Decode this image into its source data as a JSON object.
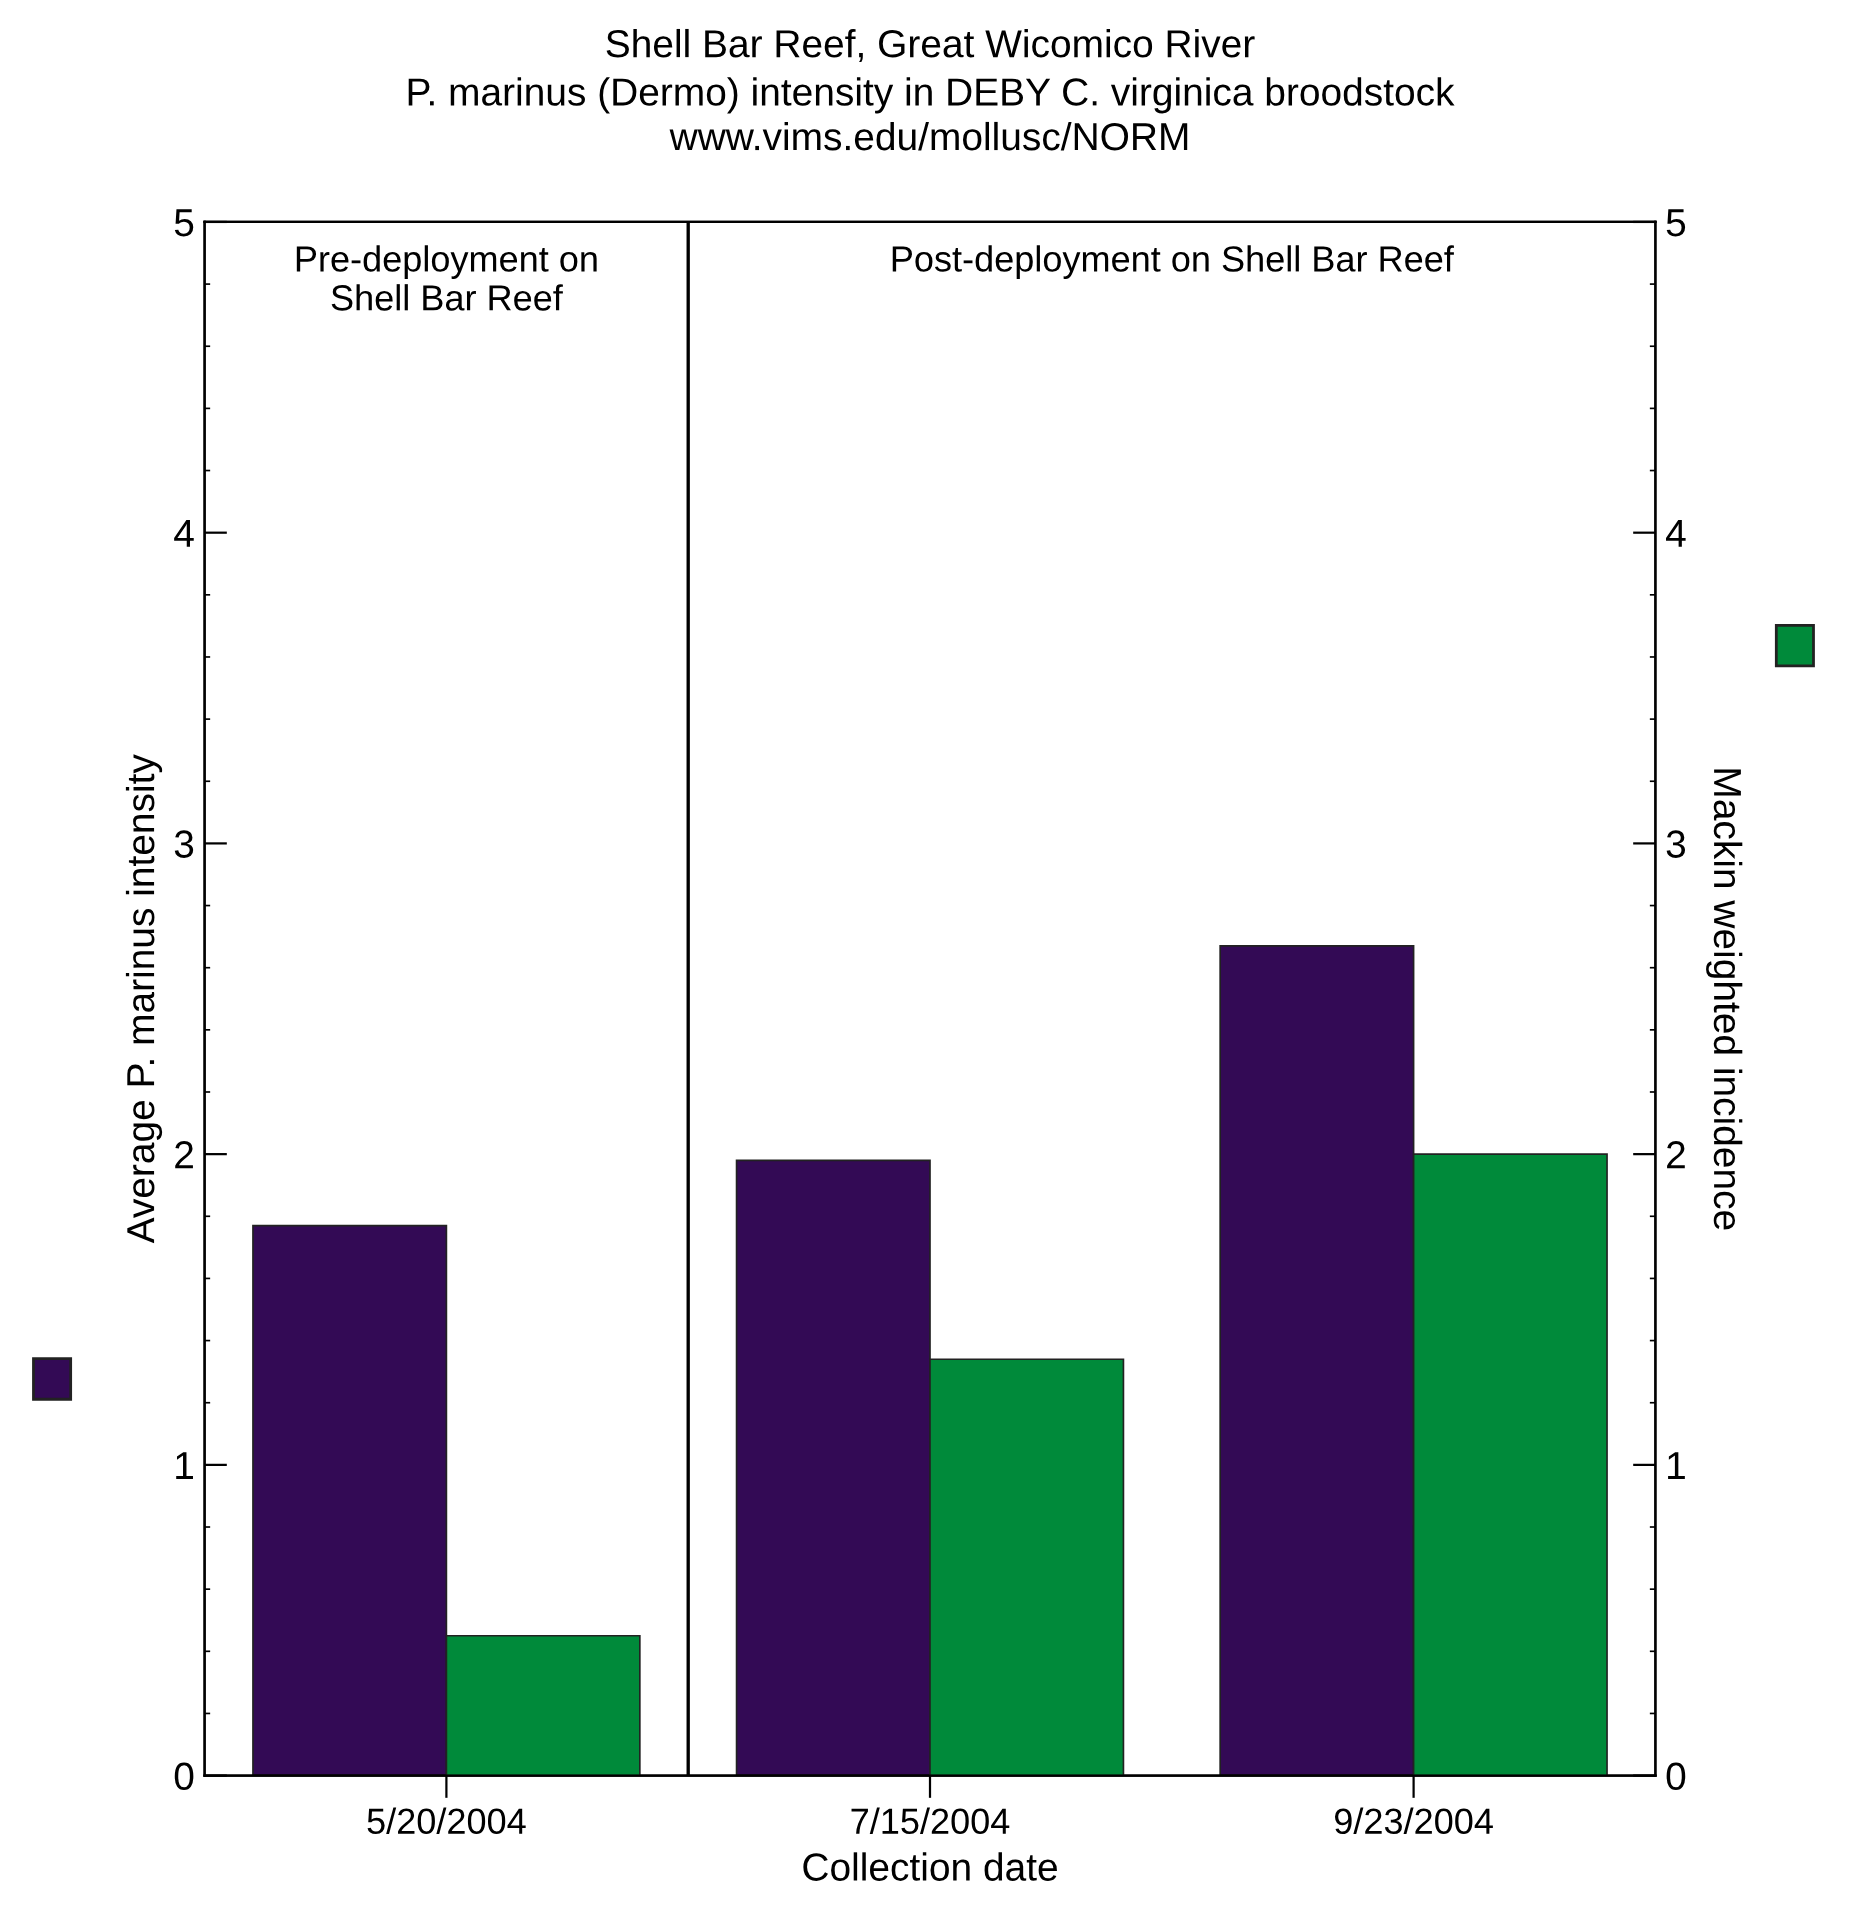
{
  "chart_data": {
    "type": "bar",
    "title": "Shell Bar Reef, Great Wicomico River",
    "subtitle": "P. marinus (Dermo) intensity in DEBY C. virginica broodstock\nwww.vims.edu/mollusc/NORM",
    "xlabel": "Collection date",
    "ylabel": "Average P. marinus intensity",
    "y2label": "Mackin weighted incidence",
    "categories": [
      "5/20/2004",
      "7/15/2004",
      "9/23/2004"
    ],
    "series": [
      {
        "color": "#330a55",
        "values": [
          1.77,
          1.98,
          2.67
        ]
      },
      {
        "color": "#008a3a",
        "values": [
          0.45,
          1.34,
          2.0
        ],
        "axis": "y2"
      }
    ],
    "ylim": [
      0,
      5
    ],
    "yticks": [
      0,
      1,
      2,
      3,
      4,
      5
    ],
    "y2lim": [
      0,
      5
    ],
    "y2ticks": [
      0,
      1,
      2,
      3,
      4,
      5
    ],
    "annotations": [
      "Pre-deployment on\nShell Bar Reef",
      "Post-deployment on Shell Bar Reef"
    ],
    "grid": false,
    "legend": false
  }
}
